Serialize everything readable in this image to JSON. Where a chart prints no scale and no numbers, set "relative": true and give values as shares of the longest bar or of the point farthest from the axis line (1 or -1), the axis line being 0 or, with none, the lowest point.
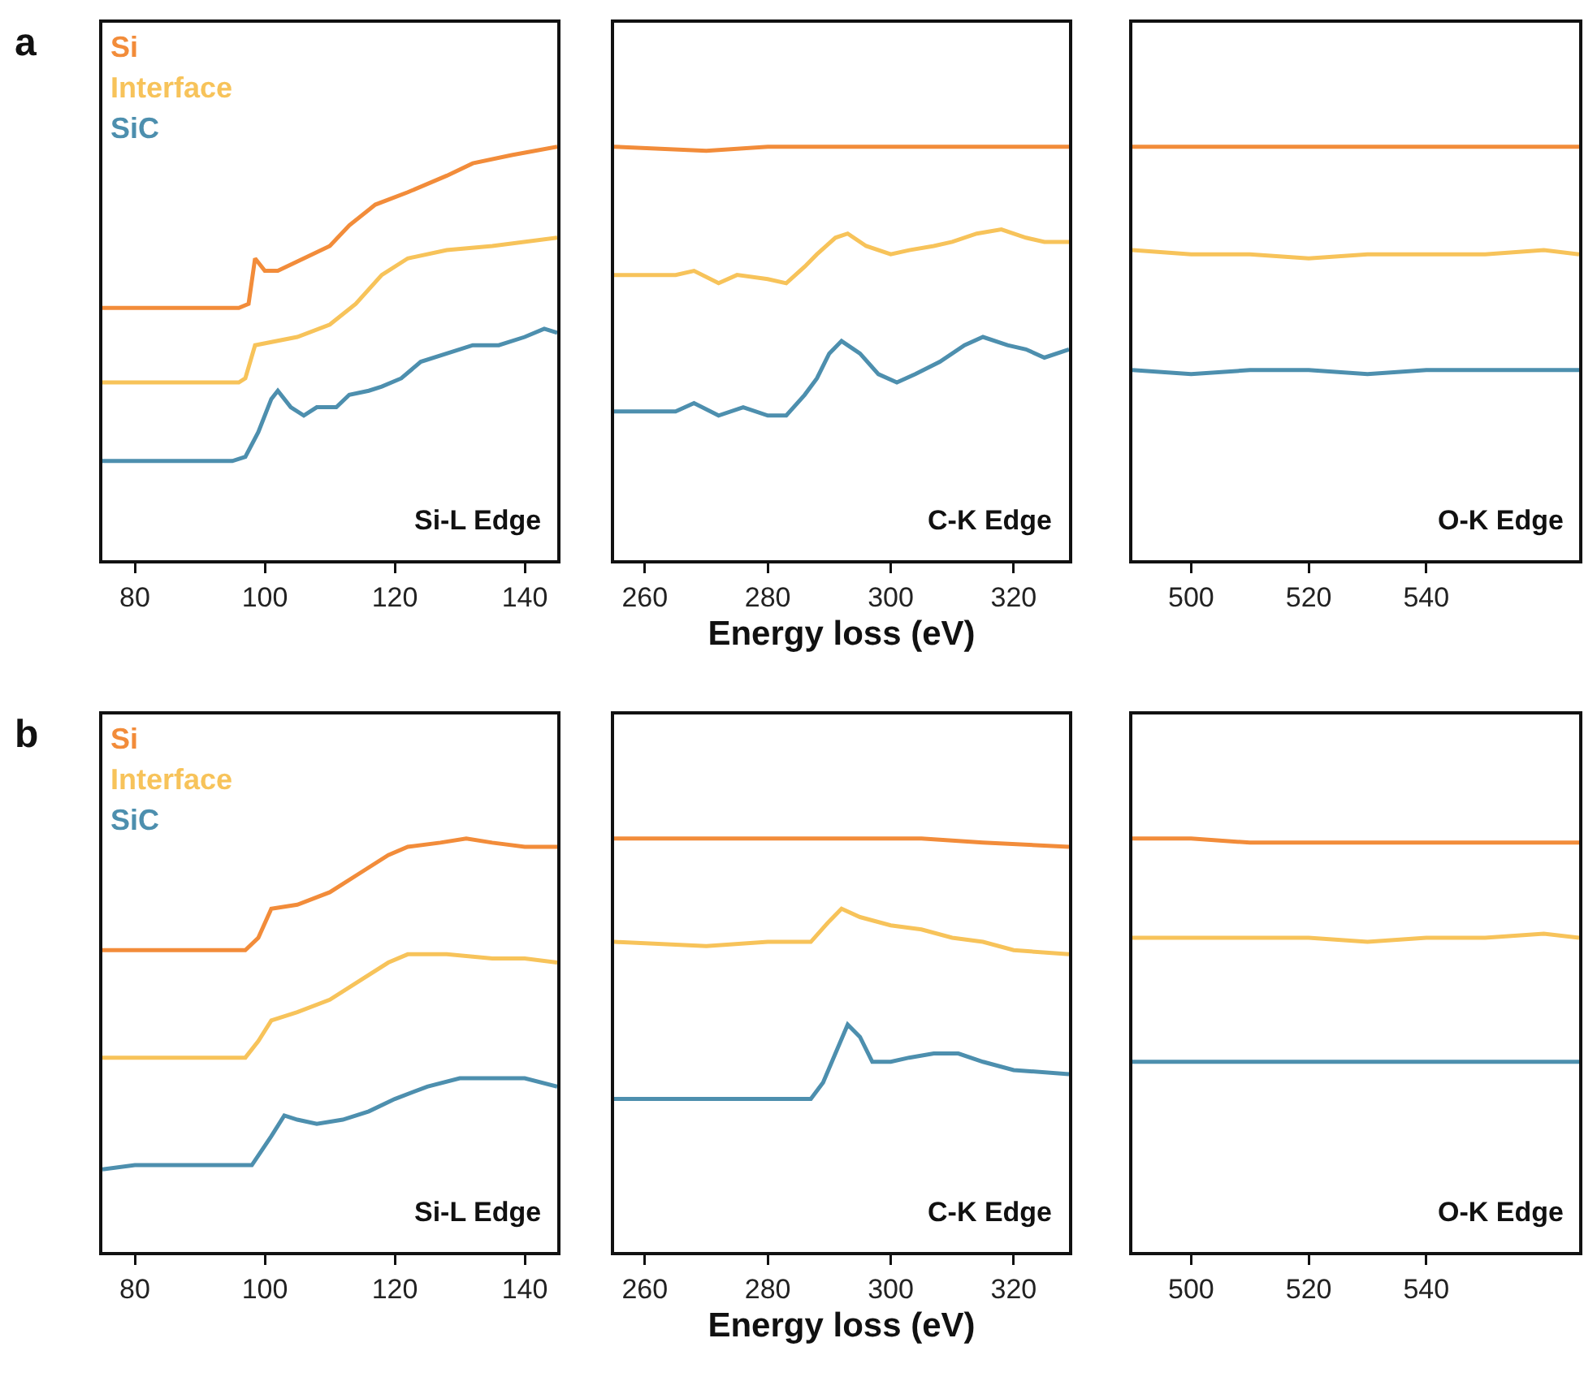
{
  "chart_data": [
    {
      "type": "line",
      "relative": true,
      "legend": "top left",
      "annotations": [
        "a",
        "Si-L Edge"
      ],
      "xlim": [
        75,
        145
      ],
      "xticks": [
        80,
        100,
        120,
        140
      ],
      "series": [
        {
          "name": "Si",
          "color": "#f28c3a",
          "x": [
            75,
            96,
            97.5,
            98.5,
            100,
            102,
            106,
            110,
            113,
            117,
            122,
            128,
            132,
            138,
            145
          ],
          "values": [
            0.61,
            0.61,
            0.62,
            0.73,
            0.7,
            0.7,
            0.73,
            0.76,
            0.81,
            0.86,
            0.89,
            0.93,
            0.96,
            0.98,
            1.0
          ]
        },
        {
          "name": "Interface",
          "color": "#f7c35a",
          "x": [
            75,
            96,
            97,
            98.5,
            105,
            110,
            114,
            118,
            122,
            128,
            135,
            145
          ],
          "values": [
            0.43,
            0.43,
            0.44,
            0.52,
            0.54,
            0.57,
            0.62,
            0.69,
            0.73,
            0.75,
            0.76,
            0.78
          ]
        },
        {
          "name": "SiC",
          "color": "#4d8fae",
          "x": [
            75,
            90,
            95,
            97,
            99,
            101,
            102,
            104,
            106,
            108,
            111,
            113,
            116,
            118,
            121,
            124,
            128,
            132,
            136,
            140,
            143,
            145
          ],
          "values": [
            0.24,
            0.24,
            0.24,
            0.25,
            0.31,
            0.39,
            0.41,
            0.37,
            0.35,
            0.37,
            0.37,
            0.4,
            0.41,
            0.42,
            0.44,
            0.48,
            0.5,
            0.52,
            0.52,
            0.54,
            0.56,
            0.55
          ]
        }
      ]
    },
    {
      "type": "line",
      "relative": true,
      "xlabel": "Energy loss (eV)",
      "annotations": [
        "C-K Edge"
      ],
      "xlim": [
        255,
        329
      ],
      "xticks": [
        260,
        280,
        300,
        320
      ],
      "series": [
        {
          "color": "#f28c3a",
          "x": [
            255,
            270,
            280,
            290,
            300,
            310,
            320,
            329
          ],
          "values": [
            1.0,
            0.99,
            1.0,
            1.0,
            1.0,
            1.0,
            1.0,
            1.0
          ]
        },
        {
          "color": "#f7c35a",
          "x": [
            255,
            265,
            268,
            272,
            275,
            280,
            283,
            286,
            288,
            291,
            293,
            296,
            300,
            303,
            307,
            310,
            314,
            318,
            322,
            325,
            329
          ],
          "values": [
            0.69,
            0.69,
            0.7,
            0.67,
            0.69,
            0.68,
            0.67,
            0.71,
            0.74,
            0.78,
            0.79,
            0.76,
            0.74,
            0.75,
            0.76,
            0.77,
            0.79,
            0.8,
            0.78,
            0.77,
            0.77
          ]
        },
        {
          "color": "#4d8fae",
          "x": [
            255,
            265,
            268,
            272,
            276,
            280,
            283,
            286,
            288,
            290,
            292,
            295,
            298,
            301,
            304,
            308,
            312,
            315,
            319,
            322,
            325,
            329
          ],
          "values": [
            0.36,
            0.36,
            0.38,
            0.35,
            0.37,
            0.35,
            0.35,
            0.4,
            0.44,
            0.5,
            0.53,
            0.5,
            0.45,
            0.43,
            0.45,
            0.48,
            0.52,
            0.54,
            0.52,
            0.51,
            0.49,
            0.51
          ]
        }
      ]
    },
    {
      "type": "line",
      "relative": true,
      "annotations": [
        "O-K Edge"
      ],
      "xlim": [
        490,
        566
      ],
      "xticks": [
        500,
        520,
        540
      ],
      "x": [
        490,
        500,
        510,
        520,
        530,
        540,
        550,
        560,
        566
      ],
      "series": [
        {
          "color": "#f28c3a",
          "values": [
            1.0,
            1.0,
            1.0,
            1.0,
            1.0,
            1.0,
            1.0,
            1.0,
            1.0
          ]
        },
        {
          "color": "#f7c35a",
          "values": [
            0.75,
            0.74,
            0.74,
            0.73,
            0.74,
            0.74,
            0.74,
            0.75,
            0.74
          ]
        },
        {
          "color": "#4d8fae",
          "values": [
            0.46,
            0.45,
            0.46,
            0.46,
            0.45,
            0.46,
            0.46,
            0.46,
            0.46
          ]
        }
      ]
    },
    {
      "type": "line",
      "relative": true,
      "legend": "top left",
      "annotations": [
        "b",
        "Si-L Edge"
      ],
      "xlim": [
        75,
        145
      ],
      "xticks": [
        80,
        100,
        120,
        140
      ],
      "series": [
        {
          "name": "Si",
          "color": "#f28c3a",
          "x": [
            75,
            97,
            99,
            101,
            105,
            110,
            115,
            119,
            122,
            127,
            131,
            135,
            140,
            145
          ],
          "values": [
            0.73,
            0.73,
            0.76,
            0.83,
            0.84,
            0.87,
            0.92,
            0.96,
            0.98,
            0.99,
            1.0,
            0.99,
            0.98,
            0.98
          ]
        },
        {
          "name": "Interface",
          "color": "#f7c35a",
          "x": [
            75,
            97,
            99,
            101,
            105,
            110,
            115,
            119,
            122,
            128,
            135,
            140,
            145
          ],
          "values": [
            0.47,
            0.47,
            0.51,
            0.56,
            0.58,
            0.61,
            0.66,
            0.7,
            0.72,
            0.72,
            0.71,
            0.71,
            0.7
          ]
        },
        {
          "name": "SiC",
          "color": "#4d8fae",
          "x": [
            75,
            80,
            85,
            90,
            95,
            98,
            101,
            103,
            105,
            108,
            112,
            116,
            120,
            125,
            130,
            135,
            140,
            145
          ],
          "values": [
            0.2,
            0.21,
            0.21,
            0.21,
            0.21,
            0.21,
            0.28,
            0.33,
            0.32,
            0.31,
            0.32,
            0.34,
            0.37,
            0.4,
            0.42,
            0.42,
            0.42,
            0.4
          ]
        }
      ]
    },
    {
      "type": "line",
      "relative": true,
      "xlabel": "Energy loss (eV)",
      "annotations": [
        "C-K Edge"
      ],
      "xlim": [
        255,
        329
      ],
      "xticks": [
        260,
        280,
        300,
        320
      ],
      "series": [
        {
          "color": "#f28c3a",
          "x": [
            255,
            270,
            285,
            295,
            305,
            315,
            329
          ],
          "values": [
            1.0,
            1.0,
            1.0,
            1.0,
            1.0,
            0.99,
            0.98
          ]
        },
        {
          "color": "#f7c35a",
          "x": [
            255,
            270,
            280,
            287,
            290,
            292,
            295,
            300,
            305,
            310,
            315,
            320,
            329
          ],
          "values": [
            0.75,
            0.74,
            0.75,
            0.75,
            0.8,
            0.83,
            0.81,
            0.79,
            0.78,
            0.76,
            0.75,
            0.73,
            0.72
          ]
        },
        {
          "color": "#4d8fae",
          "x": [
            255,
            270,
            280,
            287,
            289,
            291,
            293,
            295,
            297,
            300,
            303,
            307,
            311,
            315,
            320,
            329
          ],
          "values": [
            0.37,
            0.37,
            0.37,
            0.37,
            0.41,
            0.48,
            0.55,
            0.52,
            0.46,
            0.46,
            0.47,
            0.48,
            0.48,
            0.46,
            0.44,
            0.43
          ]
        }
      ]
    },
    {
      "type": "line",
      "relative": true,
      "annotations": [
        "O-K Edge"
      ],
      "xlim": [
        490,
        566
      ],
      "xticks": [
        500,
        520,
        540
      ],
      "x": [
        490,
        500,
        510,
        520,
        530,
        540,
        550,
        560,
        566
      ],
      "series": [
        {
          "color": "#f28c3a",
          "values": [
            1.0,
            1.0,
            0.99,
            0.99,
            0.99,
            0.99,
            0.99,
            0.99,
            0.99
          ]
        },
        {
          "color": "#f7c35a",
          "values": [
            0.76,
            0.76,
            0.76,
            0.76,
            0.75,
            0.76,
            0.76,
            0.77,
            0.76
          ]
        },
        {
          "color": "#4d8fae",
          "values": [
            0.46,
            0.46,
            0.46,
            0.46,
            0.46,
            0.46,
            0.46,
            0.46,
            0.46
          ]
        }
      ]
    }
  ]
}
